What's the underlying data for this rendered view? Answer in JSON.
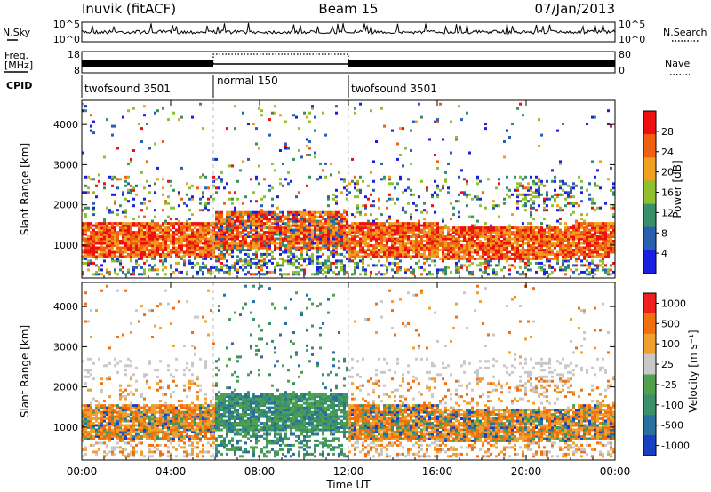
{
  "header": {
    "station": "Inuvik (fitACF)",
    "beam": "Beam 15",
    "date": "07/Jan/2013"
  },
  "chart_data": [
    {
      "type": "line",
      "panel": "noise",
      "ylabel_left": "N.Sky",
      "ylabel_right": "N.Search",
      "left_ticks": [
        "10^5",
        "10^0"
      ],
      "right_ticks": [
        "10^5",
        "10^0"
      ],
      "scale": "log"
    },
    {
      "type": "line",
      "panel": "frequency",
      "ylabel_left_lines": [
        "Freq.",
        "[MHz]"
      ],
      "ylabel_right": "Nave",
      "left_ticks": [
        "18",
        "8"
      ],
      "right_ticks": [
        "80",
        "0"
      ]
    },
    {
      "type": "table",
      "panel": "cpid",
      "label": "CPID",
      "segments": [
        {
          "name": "twofsound 3501",
          "start": "00:00",
          "end": "06:00"
        },
        {
          "name": "normal 150",
          "start": "06:00",
          "end": "12:00"
        },
        {
          "name": "twofsound 3501",
          "start": "12:00",
          "end": "24:00"
        }
      ]
    },
    {
      "type": "heatmap",
      "panel": "power",
      "ylabel": "Slant Range [km]",
      "yticks": [
        1000,
        2000,
        3000,
        4000
      ],
      "ylim": [
        180,
        4600
      ],
      "colorbar_label": "Power [dB]",
      "colorbar_ticks": [
        4,
        8,
        12,
        16,
        20,
        24,
        28
      ],
      "colors": [
        "#1a20e0",
        "#2a5fb0",
        "#3a8f68",
        "#8fc030",
        "#f0a020",
        "#f06010",
        "#ee1010"
      ]
    },
    {
      "type": "heatmap",
      "panel": "velocity",
      "ylabel": "Slant Range [km]",
      "yticks": [
        1000,
        2000,
        3000,
        4000
      ],
      "ylim": [
        180,
        4600
      ],
      "colorbar_label": "Velocity [m s⁻¹]",
      "colorbar_ticks": [
        1000,
        500,
        100,
        25,
        -25,
        -100,
        -500,
        -1000
      ],
      "colors": [
        "#1840c0",
        "#2870a0",
        "#3a9068",
        "#50a050",
        "#c8c8c8",
        "#f0a030",
        "#f07010",
        "#ee2020"
      ]
    }
  ],
  "xaxis": {
    "label": "Time UT",
    "ticks": [
      "00:00",
      "04:00",
      "08:00",
      "12:00",
      "16:00",
      "20:00",
      "00:00"
    ]
  }
}
